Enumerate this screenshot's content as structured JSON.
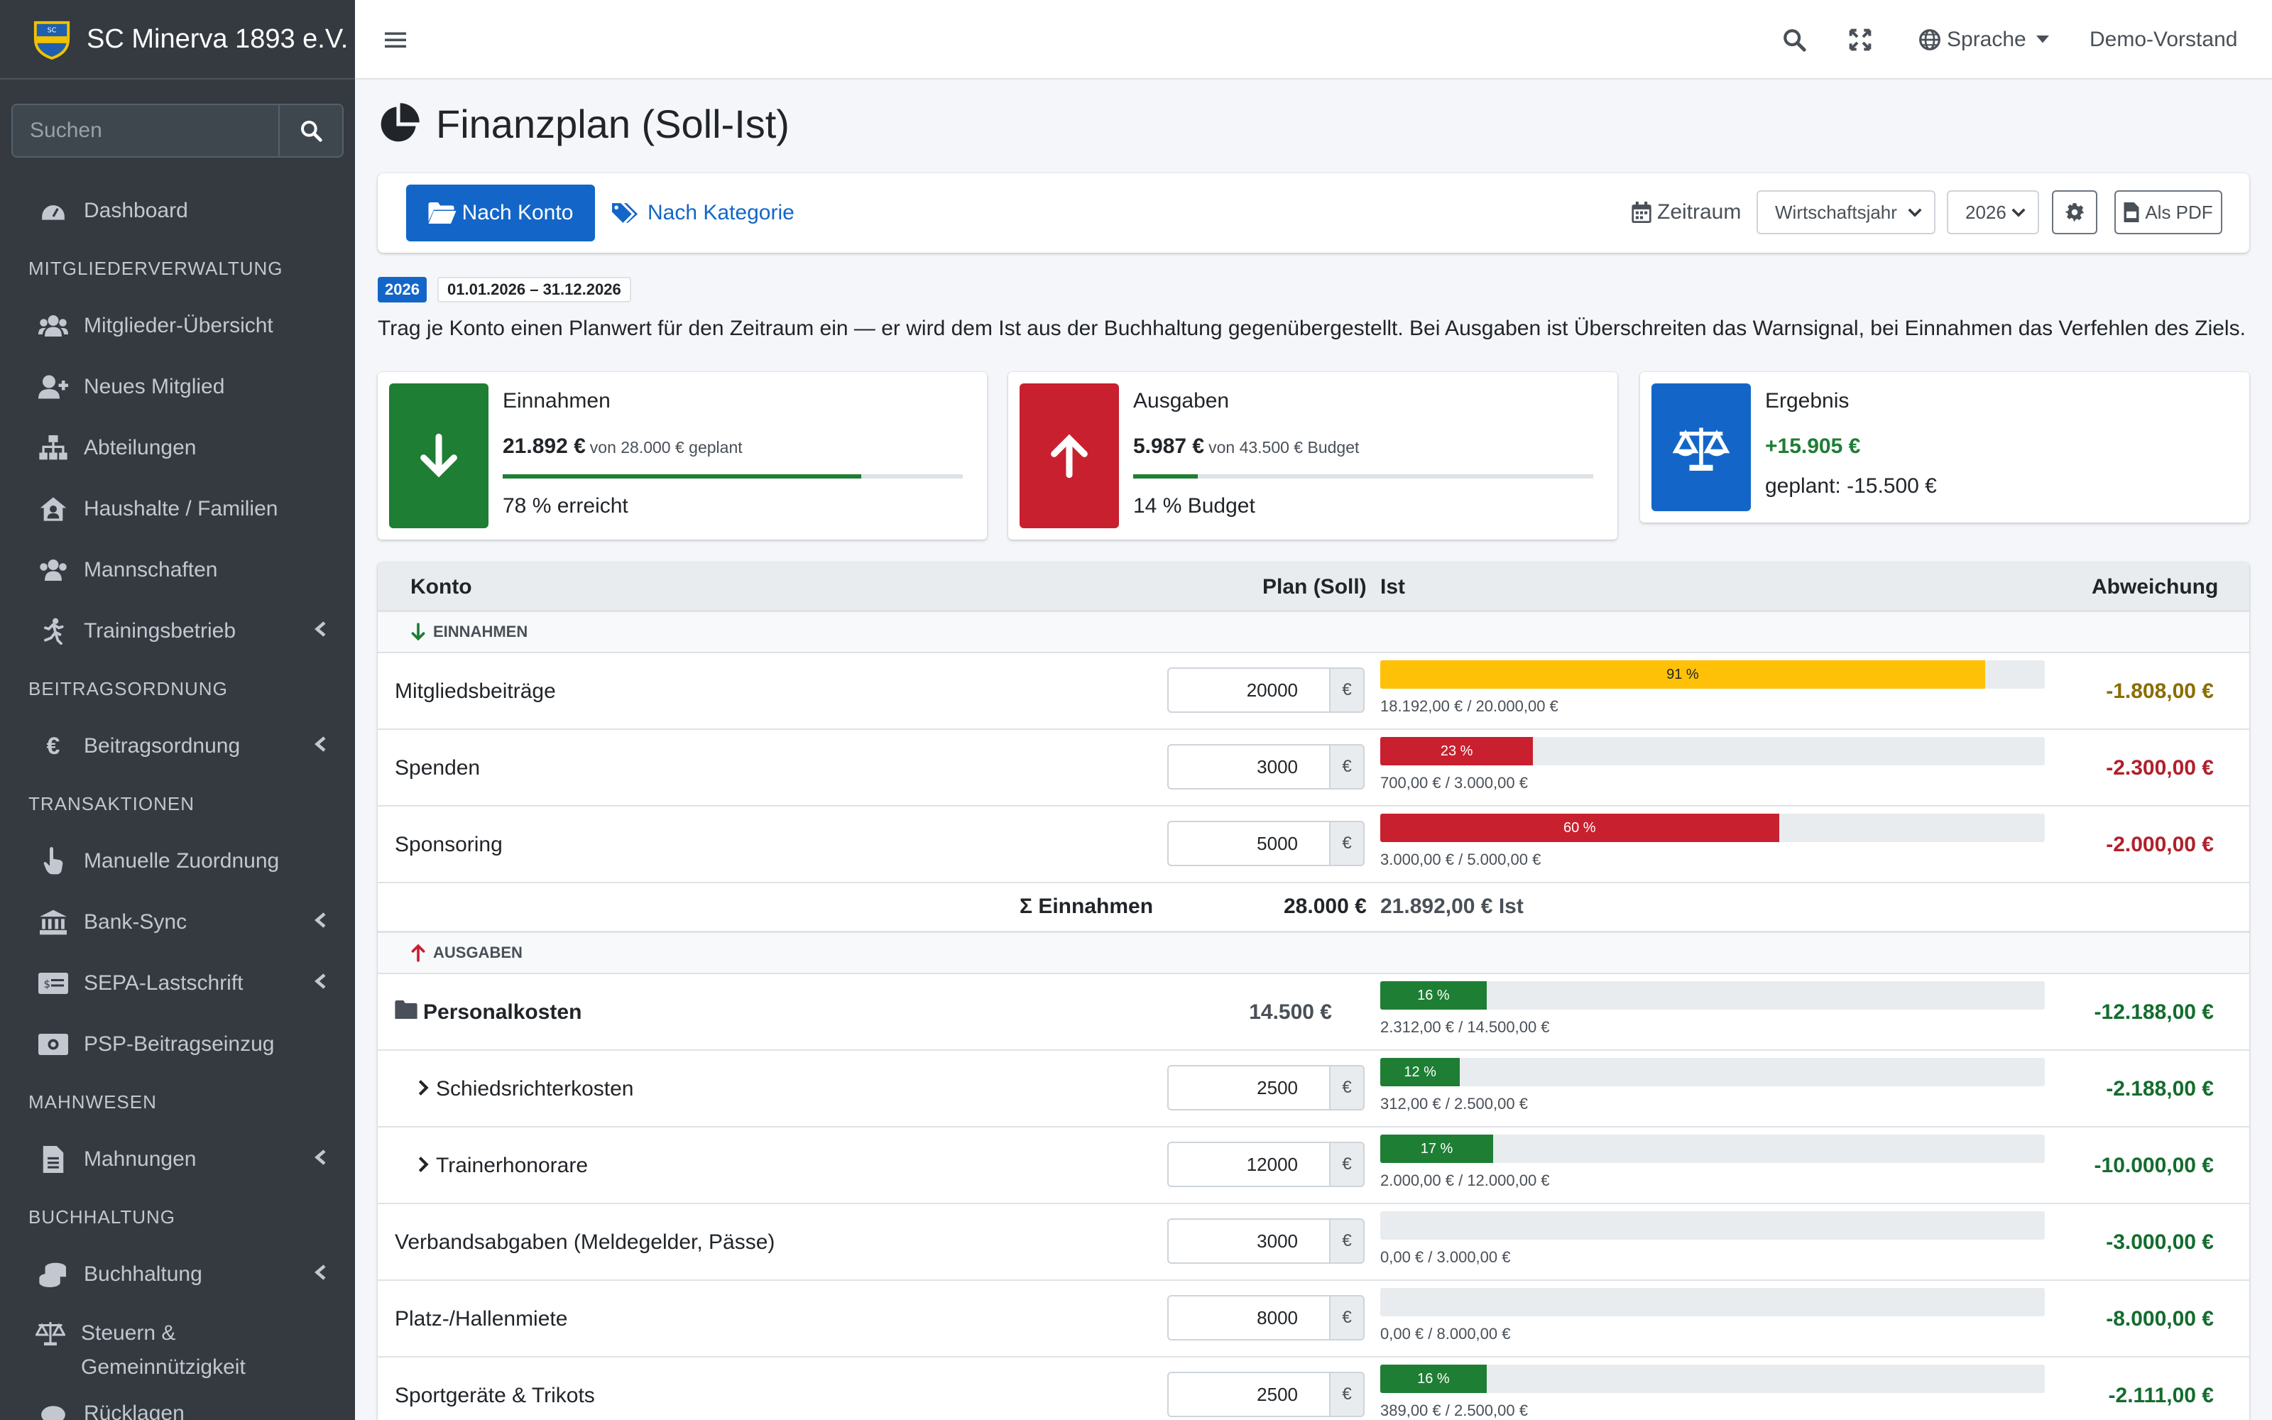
{
  "brand": {
    "name": "SC Minerva 1893 e.V."
  },
  "sidebar": {
    "search_placeholder": "Suchen",
    "dashboard": "Dashboard",
    "h_members": "MITGLIEDERVERWALTUNG",
    "members_overview": "Mitglieder-Übersicht",
    "new_member": "Neues Mitglied",
    "departments": "Abteilungen",
    "households": "Haushalte / Familien",
    "teams": "Mannschaften",
    "training": "Trainingsbetrieb",
    "h_fees": "BEITRAGSORDNUNG",
    "fees": "Beitragsordnung",
    "h_transactions": "TRANSAKTIONEN",
    "manual_assign": "Manuelle Zuordnung",
    "bank_sync": "Bank-Sync",
    "sepa": "SEPA-Lastschrift",
    "psp": "PSP-Beitragseinzug",
    "h_dunning": "MAHNWESEN",
    "dunning": "Mahnungen",
    "h_accounting": "BUCHHALTUNG",
    "accounting": "Buchhaltung",
    "tax": "Steuern & Gemeinnützigkeit",
    "reserves": "Rücklagen"
  },
  "topbar": {
    "language": "Sprache",
    "user": "Demo-Vorstand"
  },
  "page": {
    "title": "Finanzplan (Soll-Ist)",
    "tab_account": "Nach Konto",
    "tab_category": "Nach Kategorie",
    "period_label": "Zeitraum",
    "period_type": "Wirtschaftsjahr",
    "year": "2026",
    "pdf": "Als PDF",
    "badge_year": "2026",
    "badge_range": "01.01.2026 – 31.12.2026",
    "intro": "Trag je Konto einen Planwert für den Zeitraum ein — er wird dem Ist aus der Buchhaltung gegenübergestellt. Bei Ausgaben ist Überschreiten das Warnsignal, bei Einnahmen das Verfehlen des Ziels."
  },
  "summary": {
    "income": {
      "title": "Einnahmen",
      "amount": "21.892 €",
      "sub": "von 28.000 € geplant",
      "progress": 0.78,
      "foot": "78 % erreicht"
    },
    "expenses": {
      "title": "Ausgaben",
      "amount": "5.987 €",
      "sub": "von 43.500 € Budget",
      "progress": 0.14,
      "foot": "14 % Budget"
    },
    "result": {
      "title": "Ergebnis",
      "amount": "+15.905 €",
      "foot": "geplant: -15.500 €"
    }
  },
  "table": {
    "headers": {
      "account": "Konto",
      "plan": "Plan (Soll)",
      "actual": "Ist",
      "deviation": "Abweichung"
    },
    "income_group": "EINNAHMEN",
    "expense_group": "AUSGABEN",
    "income_rows": [
      {
        "name": "Mitgliedsbeiträge",
        "plan": "20000",
        "pct": 0.91,
        "pct_label": "91 %",
        "actual": "18.192,00 € / 20.000,00 €",
        "deviation": "-1.808,00 €",
        "color": "#ffc107",
        "dev_color": "#8a6d00",
        "label_color": "#212529"
      },
      {
        "name": "Spenden",
        "plan": "3000",
        "pct": 0.23,
        "pct_label": "23 %",
        "actual": "700,00 € / 3.000,00 €",
        "deviation": "-2.300,00 €",
        "color": "#c8202f",
        "dev_color": "#b0202c",
        "label_color": "#ffffff"
      },
      {
        "name": "Sponsoring",
        "plan": "5000",
        "pct": 0.6,
        "pct_label": "60 %",
        "actual": "3.000,00 € / 5.000,00 €",
        "deviation": "-2.000,00 €",
        "color": "#c8202f",
        "dev_color": "#b0202c",
        "label_color": "#ffffff"
      }
    ],
    "income_sum": {
      "label": "Σ Einnahmen",
      "plan": "28.000 €",
      "actual": "21.892,00 € Ist"
    },
    "expense_rows": [
      {
        "kind": "group",
        "name": "Personalkosten",
        "plan_text": "14.500 €",
        "pct": 0.16,
        "pct_label": "16 %",
        "actual": "2.312,00 € / 14.500,00 €",
        "deviation": "-12.188,00 €",
        "color": "#1e7e34",
        "dev_color": "#146c2e",
        "label_color": "#ffffff"
      },
      {
        "kind": "child",
        "name": "Schiedsrichterkosten",
        "plan": "2500",
        "pct": 0.12,
        "pct_label": "12 %",
        "actual": "312,00 € / 2.500,00 €",
        "deviation": "-2.188,00 €",
        "color": "#1e7e34",
        "dev_color": "#146c2e",
        "label_color": "#ffffff"
      },
      {
        "kind": "child",
        "name": "Trainerhonorare",
        "plan": "12000",
        "pct": 0.17,
        "pct_label": "17 %",
        "actual": "2.000,00 € / 12.000,00 €",
        "deviation": "-10.000,00 €",
        "color": "#1e7e34",
        "dev_color": "#146c2e",
        "label_color": "#ffffff"
      },
      {
        "kind": "plain",
        "name": "Verbandsabgaben (Meldegelder, Pässe)",
        "plan": "3000",
        "pct": 0,
        "pct_label": "",
        "actual": "0,00 € / 3.000,00 €",
        "deviation": "-3.000,00 €",
        "color": "#1e7e34",
        "dev_color": "#146c2e",
        "label_color": "#ffffff"
      },
      {
        "kind": "plain",
        "name": "Platz-/Hallenmiete",
        "plan": "8000",
        "pct": 0,
        "pct_label": "",
        "actual": "0,00 € / 8.000,00 €",
        "deviation": "-8.000,00 €",
        "color": "#1e7e34",
        "dev_color": "#146c2e",
        "label_color": "#ffffff"
      },
      {
        "kind": "plain",
        "name": "Sportgeräte & Trikots",
        "plan": "2500",
        "pct": 0.16,
        "pct_label": "16 %",
        "actual": "389,00 € / 2.500,00 €",
        "deviation": "-2.111,00 €",
        "color": "#1e7e34",
        "dev_color": "#146c2e",
        "label_color": "#ffffff"
      }
    ]
  }
}
